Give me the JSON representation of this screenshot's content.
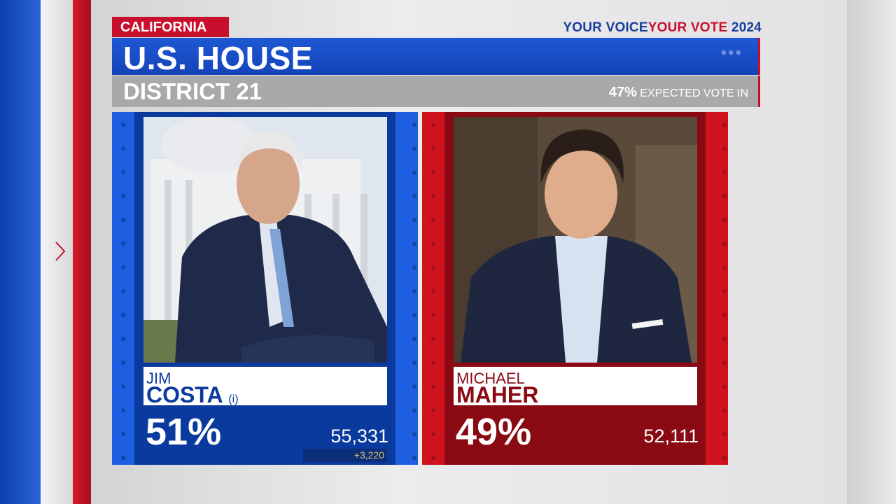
{
  "header": {
    "state": "CALIFORNIA",
    "brand": {
      "part1": "YOUR VOICE",
      "part2": "YOUR VOTE",
      "year": "2024"
    },
    "race": "U.S. HOUSE",
    "district": "DISTRICT 21",
    "reporting": {
      "percent": "47%",
      "label": "EXPECTED VOTE IN"
    }
  },
  "candidates": [
    {
      "first_name": "JIM",
      "last_name": "COSTA",
      "incumbent_mark": "(i)",
      "percent": "51%",
      "votes": "55,331",
      "change": "+3,220"
    },
    {
      "first_name": "MICHAEL",
      "last_name": "MAHER",
      "percent": "49%",
      "votes": "52,111"
    }
  ]
}
